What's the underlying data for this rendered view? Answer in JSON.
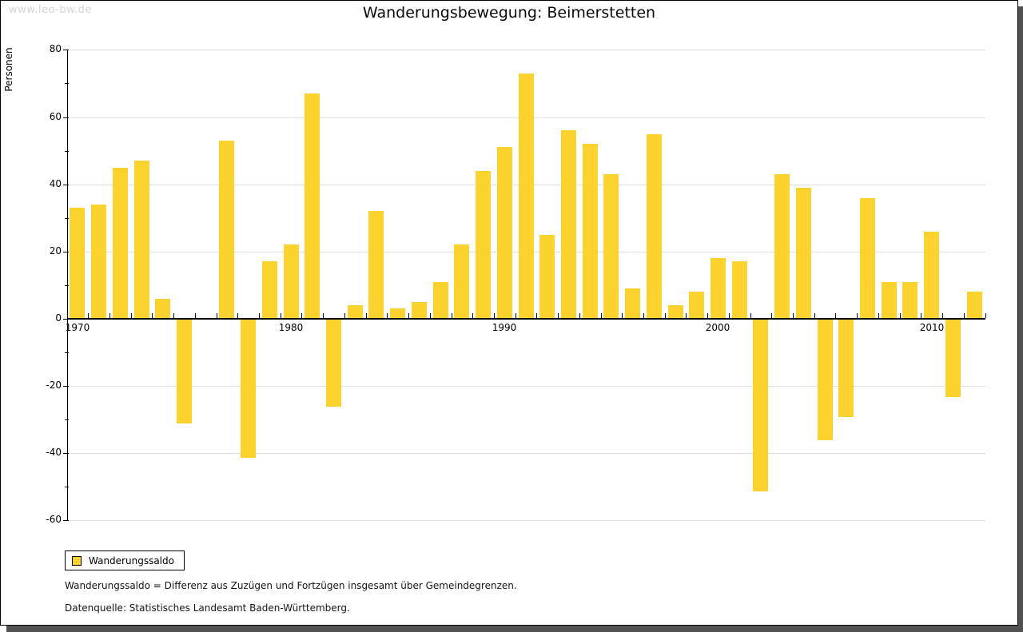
{
  "watermark": "www.leo-bw.de",
  "title": "Wanderungsbewegung: Beimerstetten",
  "chart_data": {
    "type": "bar",
    "title": "Wanderungsbewegung: Beimerstetten",
    "xlabel": "",
    "ylabel": "Personen",
    "categories": [
      1970,
      1971,
      1972,
      1973,
      1974,
      1975,
      1976,
      1977,
      1978,
      1979,
      1980,
      1981,
      1982,
      1983,
      1984,
      1985,
      1986,
      1987,
      1988,
      1989,
      1990,
      1991,
      1992,
      1993,
      1994,
      1995,
      1996,
      1997,
      1998,
      1999,
      2000,
      2001,
      2002,
      2003,
      2004,
      2005,
      2006,
      2007,
      2008,
      2009,
      2010,
      2011,
      2012
    ],
    "series": [
      {
        "name": "Wanderungssaldo",
        "values": [
          33,
          34,
          45,
          47,
          6,
          -31,
          0,
          53,
          -41,
          17,
          22,
          67,
          -26,
          4,
          32,
          3,
          5,
          11,
          22,
          44,
          51,
          73,
          25,
          56,
          52,
          43,
          9,
          55,
          4,
          8,
          18,
          17,
          -51,
          43,
          39,
          -36,
          -29,
          36,
          11,
          11,
          26,
          -23,
          8
        ]
      }
    ],
    "ylim": [
      -60,
      80
    ],
    "yticks": [
      80,
      60,
      40,
      20,
      0,
      -20,
      -40,
      -60
    ],
    "minor_ytick_interval": 10,
    "xtick_labels": [
      "1970",
      "1980",
      "1990",
      "2000",
      "2010"
    ],
    "grid": true,
    "bar_color": "#fcd32e",
    "gridline_color": "#dedede",
    "legend_position": "bottom-left"
  },
  "legend": {
    "items": [
      {
        "label": "Wanderungssaldo",
        "color": "#fcd32e"
      }
    ]
  },
  "footnotes": [
    "Wanderungssaldo = Differenz aus Zuzügen und Fortzügen insgesamt über Gemeindegrenzen.",
    "Datenquelle: Statistisches Landesamt Baden-Württemberg."
  ]
}
